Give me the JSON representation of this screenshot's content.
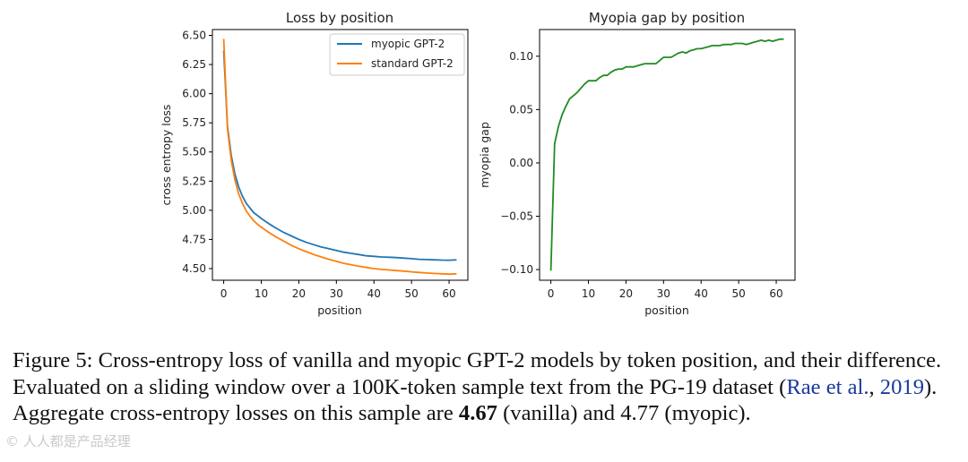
{
  "chart_data": [
    {
      "type": "line",
      "title": "Loss by position",
      "xlabel": "position",
      "ylabel": "cross entropy loss",
      "xlim": [
        -3,
        65
      ],
      "ylim": [
        4.4,
        6.55
      ],
      "xticks": [
        0,
        10,
        20,
        30,
        40,
        50,
        60
      ],
      "xtick_labels": [
        "0",
        "10",
        "20",
        "30",
        "40",
        "50",
        "60"
      ],
      "yticks": [
        4.5,
        4.75,
        5.0,
        5.25,
        5.5,
        5.75,
        6.0,
        6.25,
        6.5
      ],
      "ytick_labels": [
        "4.50",
        "4.75",
        "5.00",
        "5.25",
        "5.50",
        "5.75",
        "6.00",
        "6.25",
        "6.50"
      ],
      "legend_position": "upper right",
      "grid": false,
      "series": [
        {
          "name": "myopic GPT-2",
          "color": "#1f77b4",
          "x": [
            0,
            1,
            2,
            3,
            4,
            5,
            6,
            7,
            8,
            9,
            10,
            12,
            14,
            16,
            18,
            20,
            22,
            24,
            26,
            28,
            30,
            32,
            34,
            36,
            38,
            40,
            42,
            44,
            46,
            48,
            50,
            52,
            54,
            56,
            58,
            60,
            62
          ],
          "y": [
            6.37,
            5.72,
            5.47,
            5.31,
            5.2,
            5.12,
            5.06,
            5.02,
            4.98,
            4.955,
            4.93,
            4.885,
            4.845,
            4.81,
            4.78,
            4.75,
            4.725,
            4.705,
            4.685,
            4.67,
            4.655,
            4.64,
            4.63,
            4.62,
            4.61,
            4.605,
            4.6,
            4.597,
            4.594,
            4.59,
            4.585,
            4.58,
            4.577,
            4.575,
            4.573,
            4.572,
            4.575
          ]
        },
        {
          "name": "standard GPT-2",
          "color": "#ff7f0e",
          "x": [
            0,
            1,
            2,
            3,
            4,
            5,
            6,
            7,
            8,
            9,
            10,
            12,
            14,
            16,
            18,
            20,
            22,
            24,
            26,
            28,
            30,
            32,
            34,
            36,
            38,
            40,
            42,
            44,
            46,
            48,
            50,
            52,
            54,
            56,
            58,
            60,
            62
          ],
          "y": [
            6.47,
            5.7,
            5.43,
            5.26,
            5.14,
            5.06,
            4.995,
            4.95,
            4.91,
            4.88,
            4.855,
            4.81,
            4.77,
            4.735,
            4.7,
            4.67,
            4.645,
            4.62,
            4.6,
            4.58,
            4.562,
            4.545,
            4.532,
            4.52,
            4.51,
            4.5,
            4.493,
            4.488,
            4.483,
            4.478,
            4.472,
            4.467,
            4.462,
            4.458,
            4.455,
            4.452,
            4.455
          ]
        }
      ]
    },
    {
      "type": "line",
      "title": "Myopia gap by position",
      "xlabel": "position",
      "ylabel": "myopia gap",
      "xlim": [
        -3,
        65
      ],
      "ylim": [
        -0.11,
        0.125
      ],
      "xticks": [
        0,
        10,
        20,
        30,
        40,
        50,
        60
      ],
      "xtick_labels": [
        "0",
        "10",
        "20",
        "30",
        "40",
        "50",
        "60"
      ],
      "yticks": [
        -0.1,
        -0.05,
        0.0,
        0.05,
        0.1
      ],
      "ytick_labels": [
        "−0.10",
        "−0.05",
        "0.00",
        "0.05",
        "0.10"
      ],
      "grid": false,
      "series": [
        {
          "color": "#228b22",
          "x": [
            0,
            1,
            2,
            3,
            4,
            5,
            6,
            7,
            8,
            9,
            10,
            11,
            12,
            13,
            14,
            15,
            16,
            17,
            18,
            19,
            20,
            21,
            22,
            23,
            24,
            25,
            26,
            27,
            28,
            29,
            30,
            31,
            32,
            33,
            34,
            35,
            36,
            37,
            38,
            39,
            40,
            41,
            42,
            43,
            44,
            45,
            46,
            47,
            48,
            49,
            50,
            51,
            52,
            53,
            54,
            55,
            56,
            57,
            58,
            59,
            60,
            61,
            62
          ],
          "y": [
            -0.101,
            0.018,
            0.034,
            0.045,
            0.053,
            0.06,
            0.063,
            0.066,
            0.07,
            0.074,
            0.077,
            0.077,
            0.077,
            0.08,
            0.082,
            0.082,
            0.085,
            0.087,
            0.088,
            0.088,
            0.09,
            0.09,
            0.09,
            0.091,
            0.092,
            0.093,
            0.093,
            0.093,
            0.093,
            0.096,
            0.099,
            0.099,
            0.099,
            0.101,
            0.103,
            0.104,
            0.103,
            0.105,
            0.106,
            0.107,
            0.107,
            0.108,
            0.109,
            0.11,
            0.11,
            0.11,
            0.111,
            0.111,
            0.111,
            0.112,
            0.112,
            0.112,
            0.111,
            0.112,
            0.113,
            0.114,
            0.115,
            0.114,
            0.115,
            0.114,
            0.115,
            0.116,
            0.116
          ]
        }
      ]
    }
  ],
  "caption": {
    "label": "Figure 5:",
    "text_1": " Cross-entropy loss of vanilla and myopic GPT-2 models by token position, and their difference. Evaluated on a sliding window over a 100K-token sample text from the PG-19 dataset (",
    "cite_authors": "Rae et al.",
    "cite_sep": ", ",
    "cite_year": "2019",
    "text_2": ").  Aggregate cross-entropy losses on this sample are ",
    "vanilla_value": "4.67",
    "text_3": " (vanilla) and 4.77 (myopic)."
  },
  "watermark": "© 人人都是产品经理"
}
